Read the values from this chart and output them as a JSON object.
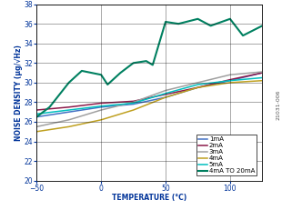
{
  "xlabel": "TEMPERATURE (°C)",
  "ylabel": "NOISE DENSITY (µg/√Hz)",
  "xlim": [
    -50,
    125
  ],
  "ylim": [
    20,
    38
  ],
  "xticks": [
    -50,
    0,
    50,
    100
  ],
  "yticks": [
    20,
    22,
    24,
    26,
    28,
    30,
    32,
    34,
    36,
    38
  ],
  "series": {
    "1mA": {
      "color": "#4472C4",
      "x": [
        -50,
        -25,
        0,
        25,
        50,
        75,
        100,
        125
      ],
      "y": [
        26.5,
        27.0,
        27.5,
        27.8,
        28.5,
        29.5,
        30.2,
        31.0
      ]
    },
    "2mA": {
      "color": "#8B1A4A",
      "x": [
        -50,
        -25,
        0,
        25,
        50,
        75,
        100,
        125
      ],
      "y": [
        27.2,
        27.5,
        27.9,
        28.1,
        28.8,
        29.5,
        30.3,
        31.0
      ]
    },
    "3mA": {
      "color": "#A0A0A0",
      "x": [
        -50,
        -25,
        0,
        25,
        50,
        75,
        100,
        125
      ],
      "y": [
        25.5,
        26.2,
        27.2,
        28.0,
        29.2,
        30.0,
        30.8,
        31.1
      ]
    },
    "4mA": {
      "color": "#BFA020",
      "x": [
        -50,
        -25,
        0,
        25,
        50,
        75,
        100,
        125
      ],
      "y": [
        25.0,
        25.5,
        26.2,
        27.2,
        28.5,
        29.5,
        30.0,
        30.2
      ]
    },
    "5mA": {
      "color": "#00BFBF",
      "x": [
        -50,
        -25,
        0,
        25,
        50,
        75,
        100,
        125
      ],
      "y": [
        26.8,
        27.2,
        27.6,
        27.9,
        28.9,
        29.8,
        30.2,
        30.5
      ]
    },
    "4mA TO 20mA": {
      "color": "#008060",
      "x": [
        -50,
        -40,
        -25,
        -15,
        0,
        5,
        15,
        25,
        35,
        40,
        50,
        60,
        75,
        85,
        100,
        110,
        125
      ],
      "y": [
        26.5,
        27.5,
        30.0,
        31.2,
        30.8,
        29.8,
        31.0,
        32.0,
        32.2,
        31.8,
        36.2,
        36.0,
        36.5,
        35.8,
        36.5,
        34.8,
        35.8
      ]
    }
  },
  "legend_order": [
    "1mA",
    "2mA",
    "3mA",
    "4mA",
    "5mA",
    "4mA TO 20mA"
  ],
  "side_label": "21031-006",
  "background_color": "#ffffff",
  "label_color": "#003399",
  "tick_color": "#003399",
  "label_fontsize": 5.5,
  "tick_fontsize": 5.5,
  "legend_fontsize": 5.0
}
